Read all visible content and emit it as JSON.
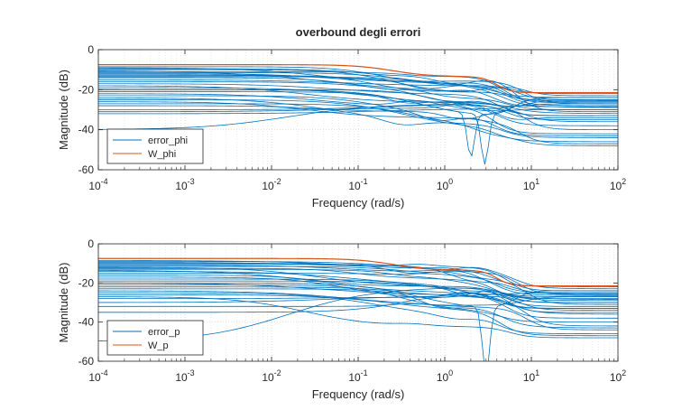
{
  "chart_data": [
    {
      "type": "line",
      "title": "overbound degli errori",
      "xlabel": "Frequency  (rad/s)",
      "ylabel": "Magnitude (dB)",
      "xscale": "log",
      "xlim": [
        0.0001,
        100
      ],
      "ylim": [
        -60,
        0
      ],
      "xticks": [
        {
          "base": "10",
          "exp": "-4"
        },
        {
          "base": "10",
          "exp": "-3"
        },
        {
          "base": "10",
          "exp": "-2"
        },
        {
          "base": "10",
          "exp": "-1"
        },
        {
          "base": "10",
          "exp": "0"
        },
        {
          "base": "10",
          "exp": "1"
        },
        {
          "base": "10",
          "exp": "2"
        }
      ],
      "yticks": [
        "0",
        "-20",
        "-40",
        "-60"
      ],
      "grid": true,
      "legend_position": "bottom-left",
      "series": [
        {
          "name": "error_phi",
          "color": "#0072BD"
        },
        {
          "name": "W_phi",
          "color": "#D95319"
        }
      ],
      "bound_curve": {
        "x": [
          0.0001,
          0.1,
          1,
          2,
          8,
          100
        ],
        "y": [
          -7.5,
          -7.5,
          -13.5,
          -14,
          -21.5,
          -21.5
        ]
      },
      "error_curves": {
        "note_low_freq_db": [
          -8.5,
          -9,
          -9.5,
          -10,
          -10.5,
          -11,
          -11.5,
          -12,
          -12.5,
          -13,
          -13.5,
          -14,
          -15,
          -16,
          -17,
          -18,
          -19,
          -20,
          -21,
          -22,
          -23,
          -24,
          -25,
          -26,
          -27,
          -28,
          -30,
          -31,
          -32,
          -40
        ],
        "high_freq_db": [
          -22,
          -23,
          -24,
          -25,
          -25.5,
          -26,
          -26.5,
          -27,
          -28,
          -28.5,
          -29,
          -30,
          -31,
          -32,
          -33,
          -34,
          -36,
          -38,
          -40,
          -42,
          -43,
          -44,
          -46,
          -47,
          -48,
          -30,
          -33,
          -27,
          -25,
          -35
        ]
      },
      "notches": [
        {
          "x": 2.0,
          "y": -50
        },
        {
          "x": 2.9,
          "y": -53
        }
      ]
    },
    {
      "type": "line",
      "title": "",
      "xlabel": "Frequency  (rad/s)",
      "ylabel": "Magnitude (dB)",
      "xscale": "log",
      "xlim": [
        0.0001,
        100
      ],
      "ylim": [
        -60,
        0
      ],
      "xticks": [
        {
          "base": "10",
          "exp": "-4"
        },
        {
          "base": "10",
          "exp": "-3"
        },
        {
          "base": "10",
          "exp": "-2"
        },
        {
          "base": "10",
          "exp": "-1"
        },
        {
          "base": "10",
          "exp": "0"
        },
        {
          "base": "10",
          "exp": "1"
        },
        {
          "base": "10",
          "exp": "2"
        }
      ],
      "yticks": [
        "0",
        "-20",
        "-40",
        "-60"
      ],
      "grid": true,
      "legend_position": "bottom-left",
      "series": [
        {
          "name": "error_p",
          "color": "#0072BD"
        },
        {
          "name": "W_p",
          "color": "#D95319"
        }
      ],
      "bound_curve": {
        "x": [
          0.0001,
          0.1,
          1,
          2,
          8,
          100
        ],
        "y": [
          -7.5,
          -7.5,
          -13.5,
          -14,
          -21.5,
          -21.5
        ]
      },
      "error_curves": {
        "note_low_freq_db": [
          -8.5,
          -9,
          -9.5,
          -10,
          -10.5,
          -11,
          -11.5,
          -12,
          -12.5,
          -13,
          -13.5,
          -14,
          -15,
          -16,
          -17,
          -18,
          -19,
          -20,
          -21,
          -22,
          -23,
          -24,
          -25,
          -26,
          -27,
          -28,
          -30,
          -32,
          -35,
          -50
        ],
        "high_freq_db": [
          -22,
          -23,
          -24,
          -25,
          -25.5,
          -26,
          -26.5,
          -27,
          -28,
          -28.5,
          -29,
          -30,
          -31,
          -32,
          -33,
          -34,
          -36,
          -38,
          -40,
          -42,
          -43,
          -44,
          -46,
          -47,
          -48,
          -30,
          -33,
          -27,
          -25,
          -35
        ]
      },
      "notches": [
        {
          "x": 3.0,
          "y": -62
        }
      ]
    }
  ]
}
